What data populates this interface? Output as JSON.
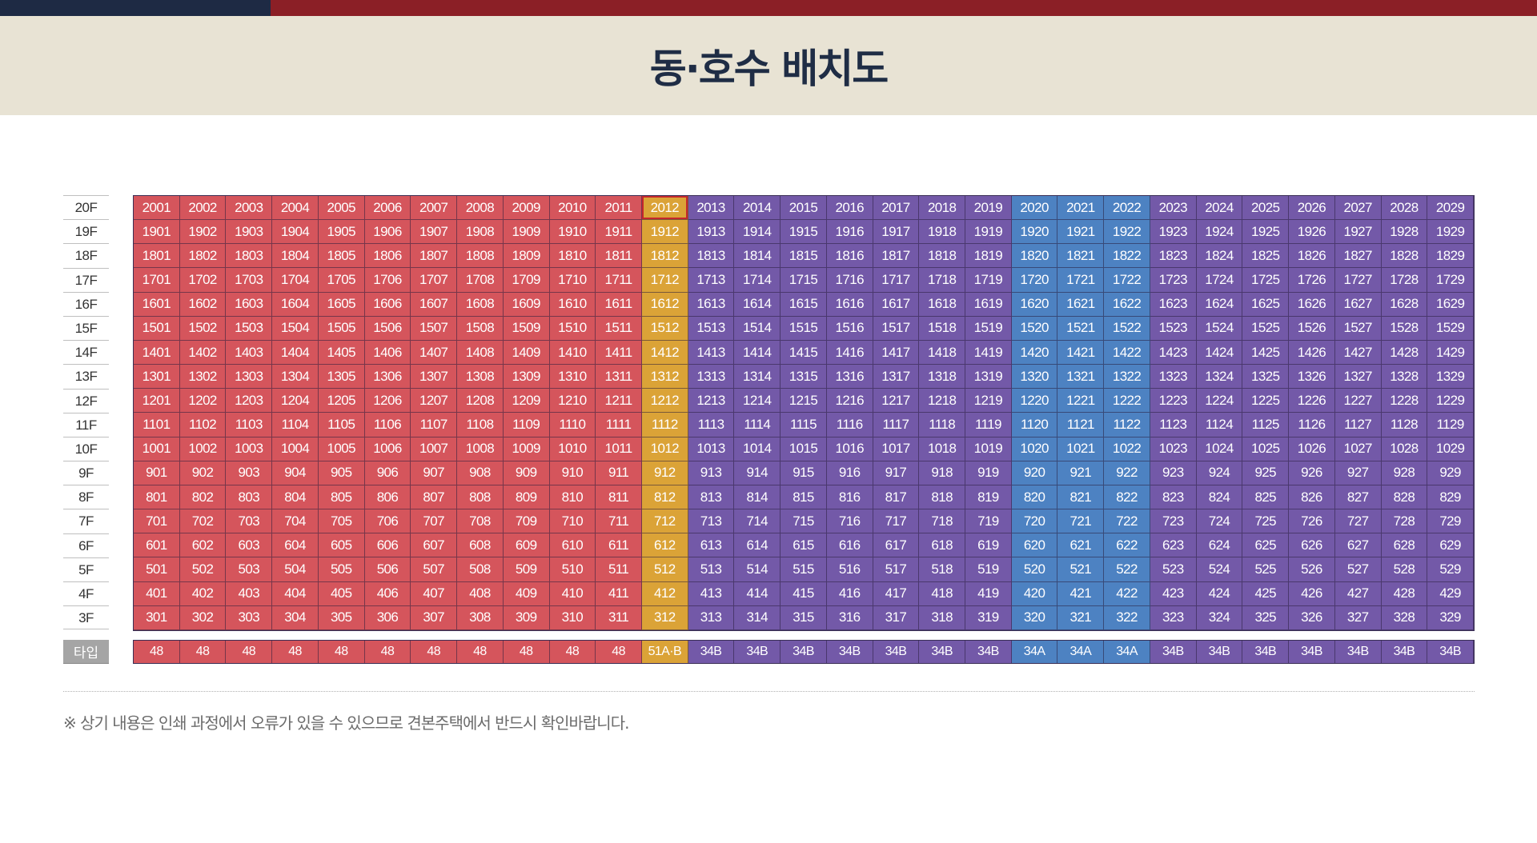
{
  "header": {
    "title": "동·호수 배치도"
  },
  "table": {
    "floors": [
      "20F",
      "19F",
      "18F",
      "17F",
      "16F",
      "15F",
      "14F",
      "13F",
      "12F",
      "11F",
      "10F",
      "9F",
      "8F",
      "7F",
      "6F",
      "5F",
      "4F",
      "3F"
    ],
    "floor_numbers": [
      20,
      19,
      18,
      17,
      16,
      15,
      14,
      13,
      12,
      11,
      10,
      9,
      8,
      7,
      6,
      5,
      4,
      3
    ],
    "units_per_floor": 29,
    "type_label": "타입",
    "types": [
      "48",
      "48",
      "48",
      "48",
      "48",
      "48",
      "48",
      "48",
      "48",
      "48",
      "48",
      "51A·B",
      "34B",
      "34B",
      "34B",
      "34B",
      "34B",
      "34B",
      "34B",
      "34A",
      "34A",
      "34A",
      "34B",
      "34B",
      "34B",
      "34B",
      "34B",
      "34B",
      "34B"
    ],
    "column_colors": [
      "red",
      "red",
      "red",
      "red",
      "red",
      "red",
      "red",
      "red",
      "red",
      "red",
      "red",
      "gold",
      "purple",
      "purple",
      "purple",
      "purple",
      "purple",
      "purple",
      "purple",
      "blue",
      "blue",
      "blue",
      "purple",
      "purple",
      "purple",
      "purple",
      "purple",
      "purple",
      "purple"
    ],
    "highlighted_unit": "2012"
  },
  "colors": {
    "red": "#d5555c",
    "gold": "#dba337",
    "purple": "#7359a8",
    "blue": "#4d82c2",
    "header_bg": "#e8e3d4",
    "title": "#1f2d45",
    "top_bar_dark": "#1e2a44",
    "top_bar_red": "#8b1f26"
  },
  "footer": {
    "note": "※ 상기 내용은 인쇄 과정에서 오류가 있을 수 있으므로 견본주택에서 반드시 확인바랍니다."
  }
}
